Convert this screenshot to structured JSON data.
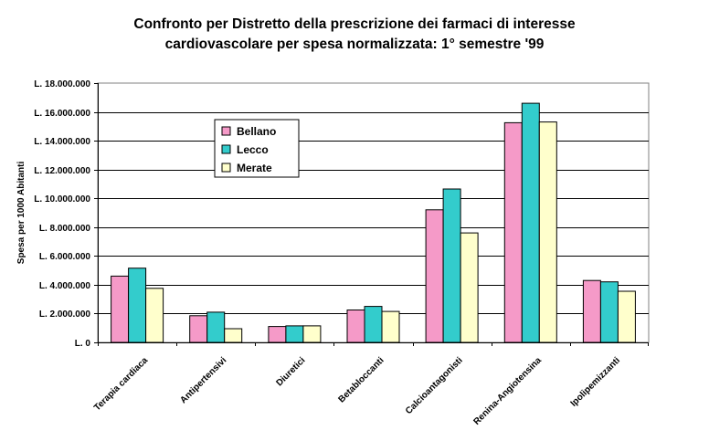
{
  "chart_data": {
    "type": "bar",
    "title_line1": "Confronto per Distretto della prescrizione dei farmaci di interesse",
    "title_line2": "cardiovascolare per spesa normalizzata: 1° semestre '99",
    "xlabel": "",
    "ylabel": "Spesa per 1000 Abitanti",
    "ylim": [
      0,
      18000000
    ],
    "yticks": [
      {
        "value": 0,
        "label": "L. 0"
      },
      {
        "value": 2000000,
        "label": "L. 2.000.000"
      },
      {
        "value": 4000000,
        "label": "L. 4.000.000"
      },
      {
        "value": 6000000,
        "label": "L. 6.000.000"
      },
      {
        "value": 8000000,
        "label": "L. 8.000.000"
      },
      {
        "value": 10000000,
        "label": "L. 10.000.000"
      },
      {
        "value": 12000000,
        "label": "L. 12.000.000"
      },
      {
        "value": 14000000,
        "label": "L. 14.000.000"
      },
      {
        "value": 16000000,
        "label": "L. 16.000.000"
      },
      {
        "value": 18000000,
        "label": "L. 18.000.000"
      }
    ],
    "categories": [
      "Terapia cardiaca",
      "Antipertensivi",
      "Diuretici",
      "Betabloccanti",
      "Calcioantagonisti",
      "Renina-Angiotensina",
      "Ipolipemizzanti"
    ],
    "series": [
      {
        "name": "Bellano",
        "color": "#f59ac8",
        "values": [
          4600000,
          1850000,
          1100000,
          2250000,
          9200000,
          15250000,
          4300000
        ]
      },
      {
        "name": "Lecco",
        "color": "#33cccc",
        "values": [
          5150000,
          2100000,
          1150000,
          2500000,
          10650000,
          16600000,
          4200000
        ]
      },
      {
        "name": "Merate",
        "color": "#ffffcc",
        "values": [
          3750000,
          950000,
          1150000,
          2150000,
          7600000,
          15300000,
          3550000
        ]
      }
    ],
    "grid": true,
    "legend_position": "top-left"
  }
}
